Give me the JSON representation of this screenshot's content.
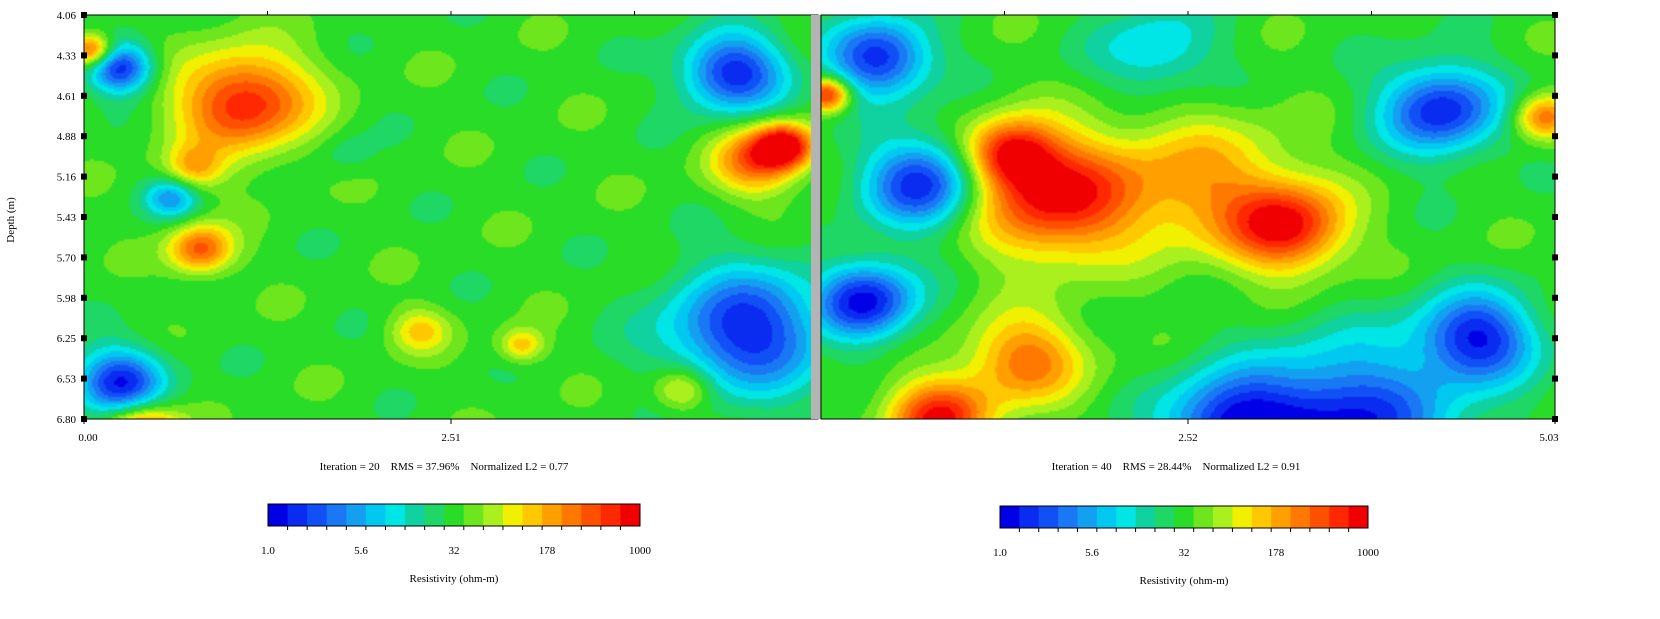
{
  "chart_data": [
    {
      "type": "heatmap",
      "panel": "left",
      "ylabel": "Depth (m)",
      "x_ticks": [
        "0.00",
        "2.51"
      ],
      "y_ticks": [
        "4.06",
        "4.33",
        "4.61",
        "4.88",
        "5.16",
        "5.43",
        "5.70",
        "5.98",
        "6.25",
        "6.53",
        "6.80"
      ],
      "xlim": [
        0.0,
        5.03
      ],
      "ylim": [
        4.06,
        6.8
      ],
      "caption": "Iteration = 20    RMS = 37.96%    Normalized L2 = 0.77",
      "colorbar": {
        "label": "Resistivity (ohm-m)",
        "ticks": [
          "1.0",
          "5.6",
          "32",
          "178",
          "1000"
        ],
        "scale": "log",
        "range": [
          1.0,
          1000
        ]
      },
      "anomalies": [
        {
          "x": 0.25,
          "y": 4.42,
          "r": 0.22,
          "value": 1.5
        },
        {
          "x": 0.25,
          "y": 6.55,
          "r": 0.3,
          "value": 1.5
        },
        {
          "x": 0.05,
          "y": 4.3,
          "r": 0.15,
          "value": 600
        },
        {
          "x": 1.1,
          "y": 4.65,
          "r": 0.45,
          "value": 700
        },
        {
          "x": 0.8,
          "y": 5.65,
          "r": 0.22,
          "value": 400
        },
        {
          "x": 0.75,
          "y": 5.1,
          "r": 0.2,
          "value": 150
        },
        {
          "x": 0.6,
          "y": 5.3,
          "r": 0.18,
          "value": 5
        },
        {
          "x": 4.45,
          "y": 4.45,
          "r": 0.35,
          "value": 1.5
        },
        {
          "x": 4.55,
          "y": 6.2,
          "r": 0.55,
          "value": 1.5
        },
        {
          "x": 4.6,
          "y": 5.05,
          "r": 0.3,
          "value": 300
        },
        {
          "x": 4.8,
          "y": 4.95,
          "r": 0.2,
          "value": 900
        },
        {
          "x": 2.3,
          "y": 6.2,
          "r": 0.2,
          "value": 120
        },
        {
          "x": 3.0,
          "y": 6.3,
          "r": 0.15,
          "value": 150
        },
        {
          "x": 4.1,
          "y": 6.6,
          "r": 0.2,
          "value": 150
        },
        {
          "x": 1.8,
          "y": 5.0,
          "r": 0.2,
          "value": 20
        },
        {
          "x": 0.4,
          "y": 6.9,
          "r": 0.25,
          "value": 800
        }
      ]
    },
    {
      "type": "heatmap",
      "panel": "right",
      "x_ticks": [
        "2.52",
        "5.03"
      ],
      "xlim": [
        0.0,
        5.03
      ],
      "ylim": [
        4.06,
        6.8
      ],
      "caption": "Iteration = 40    RMS = 28.44%    Normalized L2 = 0.91",
      "colorbar": {
        "label": "Resistivity (ohm-m)",
        "ticks": [
          "1.0",
          "5.6",
          "32",
          "178",
          "1000"
        ],
        "scale": "log",
        "range": [
          1.0,
          1000
        ]
      },
      "anomalies": [
        {
          "x": 0.4,
          "y": 4.35,
          "r": 0.35,
          "value": 1.5
        },
        {
          "x": 0.3,
          "y": 6.0,
          "r": 0.35,
          "value": 1.2
        },
        {
          "x": 0.7,
          "y": 5.2,
          "r": 0.4,
          "value": 1.5
        },
        {
          "x": 1.6,
          "y": 5.3,
          "r": 0.55,
          "value": 800
        },
        {
          "x": 1.3,
          "y": 5.0,
          "r": 0.3,
          "value": 500
        },
        {
          "x": 3.2,
          "y": 5.5,
          "r": 0.4,
          "value": 700
        },
        {
          "x": 2.6,
          "y": 5.2,
          "r": 0.6,
          "value": 180
        },
        {
          "x": 4.25,
          "y": 4.7,
          "r": 0.4,
          "value": 1.5
        },
        {
          "x": 4.5,
          "y": 6.25,
          "r": 0.4,
          "value": 1.5
        },
        {
          "x": 3.6,
          "y": 6.85,
          "r": 0.7,
          "value": 1.3
        },
        {
          "x": 2.8,
          "y": 6.85,
          "r": 0.45,
          "value": 2
        },
        {
          "x": 0.8,
          "y": 6.8,
          "r": 0.35,
          "value": 700
        },
        {
          "x": 1.4,
          "y": 6.4,
          "r": 0.4,
          "value": 300
        },
        {
          "x": 4.95,
          "y": 4.75,
          "r": 0.2,
          "value": 300
        },
        {
          "x": 0.05,
          "y": 4.6,
          "r": 0.15,
          "value": 700
        },
        {
          "x": 2.3,
          "y": 4.3,
          "r": 0.4,
          "value": 8
        }
      ]
    }
  ],
  "colors": {
    "palette": [
      "#0000e6",
      "#0a2cf0",
      "#1050f5",
      "#1a78f5",
      "#14a0f0",
      "#00c8f0",
      "#00e6e6",
      "#10d2a0",
      "#1ed764",
      "#28dc28",
      "#6ee61e",
      "#aaf01e",
      "#f0f000",
      "#ffc800",
      "#ffa000",
      "#ff7800",
      "#ff5000",
      "#ff2800",
      "#f00000"
    ],
    "background_value": 32,
    "divider": "#b4b4b4"
  }
}
